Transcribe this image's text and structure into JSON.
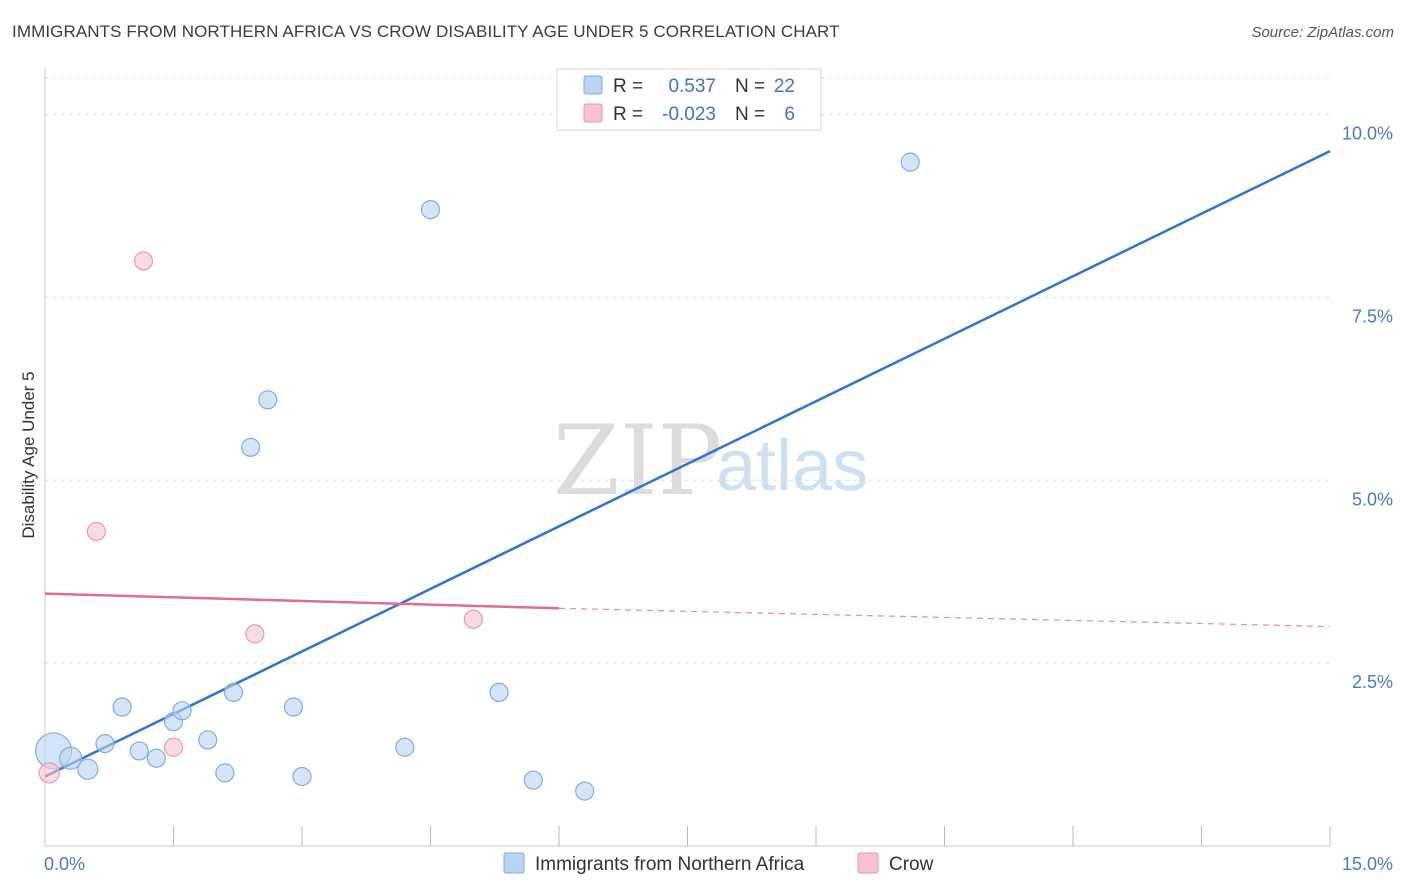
{
  "title": "IMMIGRANTS FROM NORTHERN AFRICA VS CROW DISABILITY AGE UNDER 5 CORRELATION CHART",
  "source": "Source: ZipAtlas.com",
  "watermark": {
    "zip": "ZIP",
    "atlas": "atlas"
  },
  "colors": {
    "blue_point": "#b9d3f2",
    "blue_stroke": "#86abdc",
    "blue_line": "#2f74d0",
    "pink_point": "#f7c3d1",
    "pink_stroke": "#e79ab0",
    "pink_line": "#e06b93",
    "grid": "#dddddd",
    "tick_label": "#4d79c0"
  },
  "stats_legend": [
    {
      "r_label": "R =",
      "r_value": "0.537",
      "n_label": "N =",
      "n_value": "22",
      "color": "#b9d3f2",
      "stroke": "#86abdc"
    },
    {
      "r_label": "R =",
      "r_value": "-0.023",
      "n_label": "N =",
      "n_value": "6",
      "color": "#f7c3d1",
      "stroke": "#e79ab0"
    }
  ],
  "chart_data": {
    "type": "scatter",
    "title": "IMMIGRANTS FROM NORTHERN AFRICA VS CROW DISABILITY AGE UNDER 5 CORRELATION CHART",
    "xlabel": "",
    "ylabel": "Disability Age Under 5",
    "xlim": [
      0,
      15
    ],
    "ylim": [
      0,
      10.5
    ],
    "x_tick_labels": [
      {
        "value": 0,
        "label": "0.0%"
      },
      {
        "value": 15,
        "label": "15.0%"
      }
    ],
    "y_tick_labels": [
      {
        "value": 2.5,
        "label": "2.5%"
      },
      {
        "value": 5.0,
        "label": "5.0%"
      },
      {
        "value": 7.5,
        "label": "7.5%"
      },
      {
        "value": 10.0,
        "label": "10.0%"
      }
    ],
    "x_minor_ticks": [
      1.5,
      3.0,
      4.5,
      6.0,
      7.5,
      9.0,
      10.5,
      12.0,
      13.5,
      15.0
    ],
    "grid": true,
    "legend_position": "bottom-center",
    "series": [
      {
        "name": "Immigrants from Northern Africa",
        "color": "#b9d3f2",
        "stroke": "#86abdc",
        "points": [
          {
            "x": 0.1,
            "y": 1.3,
            "size": 18
          },
          {
            "x": 0.3,
            "y": 1.2,
            "size": 11
          },
          {
            "x": 0.5,
            "y": 1.05,
            "size": 10
          },
          {
            "x": 0.7,
            "y": 1.4,
            "size": 9
          },
          {
            "x": 0.9,
            "y": 1.9,
            "size": 9
          },
          {
            "x": 1.1,
            "y": 1.3,
            "size": 9
          },
          {
            "x": 1.3,
            "y": 1.2,
            "size": 9
          },
          {
            "x": 1.5,
            "y": 1.7,
            "size": 9
          },
          {
            "x": 1.6,
            "y": 1.85,
            "size": 9
          },
          {
            "x": 1.9,
            "y": 1.45,
            "size": 9
          },
          {
            "x": 2.1,
            "y": 1.0,
            "size": 9
          },
          {
            "x": 2.2,
            "y": 2.1,
            "size": 9
          },
          {
            "x": 2.4,
            "y": 5.45,
            "size": 9
          },
          {
            "x": 2.6,
            "y": 6.1,
            "size": 9
          },
          {
            "x": 2.9,
            "y": 1.9,
            "size": 9
          },
          {
            "x": 3.0,
            "y": 0.95,
            "size": 9
          },
          {
            "x": 4.2,
            "y": 1.35,
            "size": 9
          },
          {
            "x": 4.5,
            "y": 8.7,
            "size": 9
          },
          {
            "x": 5.3,
            "y": 2.1,
            "size": 9
          },
          {
            "x": 5.7,
            "y": 0.9,
            "size": 9
          },
          {
            "x": 6.3,
            "y": 0.75,
            "size": 9
          },
          {
            "x": 10.1,
            "y": 9.35,
            "size": 9
          }
        ],
        "trend": {
          "x0": 0.0,
          "y0": 0.95,
          "x1": 15.0,
          "y1": 9.5
        }
      },
      {
        "name": "Crow",
        "color": "#f7c3d1",
        "stroke": "#e79ab0",
        "points": [
          {
            "x": 0.05,
            "y": 1.0,
            "size": 10
          },
          {
            "x": 0.6,
            "y": 4.3,
            "size": 9
          },
          {
            "x": 1.15,
            "y": 8.0,
            "size": 9
          },
          {
            "x": 1.5,
            "y": 1.35,
            "size": 9
          },
          {
            "x": 2.45,
            "y": 2.9,
            "size": 9
          },
          {
            "x": 5.0,
            "y": 3.1,
            "size": 9
          }
        ],
        "trend": {
          "x0": 0.0,
          "y0": 3.45,
          "x1": 6.0,
          "y1": 3.25,
          "dash_x1": 15.0,
          "dash_y1": 3.0
        }
      }
    ]
  },
  "bottom_legend": [
    {
      "label": "Immigrants from Northern Africa",
      "color": "#b9d3f2",
      "stroke": "#86abdc"
    },
    {
      "label": "Crow",
      "color": "#f7c3d1",
      "stroke": "#e79ab0"
    }
  ]
}
